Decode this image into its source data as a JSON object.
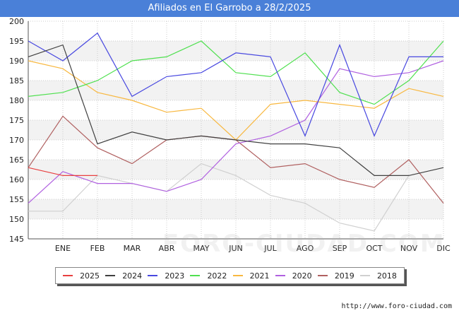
{
  "title": "Afiliados en El Garrobo a 28/2/2025",
  "source": "http://www.foro-ciudad.com",
  "watermark": "FORO-CIUDAD.COM",
  "colors": {
    "title_bar": "#4a80d8",
    "band": "#f2f2f2",
    "grid": "#cccccc"
  },
  "chart_data": {
    "type": "line",
    "title": "Afiliados en El Garrobo a 28/2/2025",
    "categories": [
      "",
      "ENE",
      "FEB",
      "MAR",
      "ABR",
      "MAY",
      "JUN",
      "JUL",
      "AGO",
      "SEP",
      "OCT",
      "NOV",
      "DIC"
    ],
    "ylim": [
      145,
      200
    ],
    "yticks": [
      145,
      150,
      155,
      160,
      165,
      170,
      175,
      180,
      185,
      190,
      195,
      200
    ],
    "grid": true,
    "legend_position": "bottom",
    "series": [
      {
        "name": "2025",
        "color": "#e84040",
        "values": [
          163,
          161,
          161,
          null,
          null,
          null,
          null,
          null,
          null,
          null,
          null,
          null,
          null
        ]
      },
      {
        "name": "2024",
        "color": "#404040",
        "values": [
          191,
          194,
          169,
          172,
          170,
          171,
          170,
          169,
          169,
          168,
          161,
          161,
          163
        ]
      },
      {
        "name": "2023",
        "color": "#4848e0",
        "values": [
          195,
          190,
          197,
          181,
          186,
          187,
          192,
          191,
          171,
          194,
          171,
          191,
          191
        ]
      },
      {
        "name": "2022",
        "color": "#50e050",
        "values": [
          181,
          182,
          185,
          190,
          191,
          195,
          187,
          186,
          192,
          182,
          179,
          185,
          195
        ]
      },
      {
        "name": "2021",
        "color": "#f8b840",
        "values": [
          190,
          188,
          182,
          180,
          177,
          178,
          170,
          179,
          180,
          179,
          178,
          183,
          181
        ]
      },
      {
        "name": "2020",
        "color": "#b060e0",
        "values": [
          154,
          162,
          159,
          159,
          157,
          160,
          169,
          171,
          175,
          188,
          186,
          187,
          190
        ]
      },
      {
        "name": "2019",
        "color": "#b06060",
        "values": [
          163,
          176,
          168,
          164,
          170,
          171,
          170,
          163,
          164,
          160,
          158,
          165,
          154
        ]
      },
      {
        "name": "2018",
        "color": "#d0d0d0",
        "values": [
          152,
          152,
          161,
          159,
          157,
          164,
          161,
          156,
          154,
          149,
          147,
          161,
          null
        ]
      }
    ]
  }
}
